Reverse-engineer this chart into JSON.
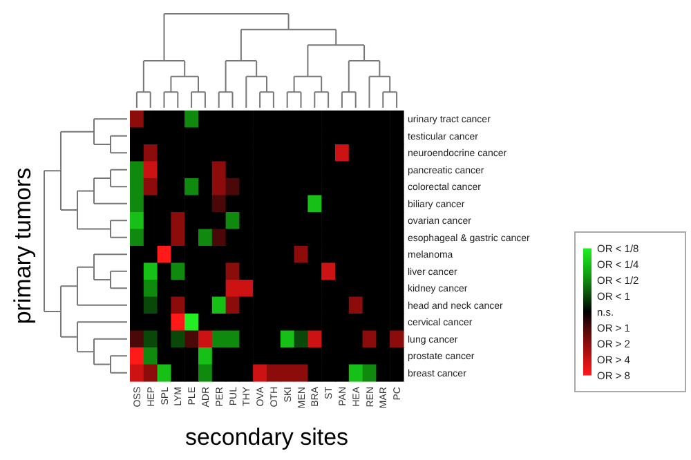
{
  "chart_data": {
    "type": "heatmap",
    "xlabel": "secondary sites",
    "ylabel": "primary tumors",
    "categories": [
      "OSS",
      "HEP",
      "SPL",
      "LYM",
      "PLE",
      "ADR",
      "PER",
      "PUL",
      "THY",
      "OVA",
      "OTH",
      "SKI",
      "MEN",
      "BRA",
      "ST",
      "PAN",
      "HEA",
      "REN",
      "MAR",
      "PC"
    ],
    "y_categories": [
      "urinary tract cancer",
      "testicular cancer",
      "neuroendocrine cancer",
      "pancreatic cancer",
      "colorectal cancer",
      "biliary cancer",
      "ovarian cancer",
      "esophageal & gastric cancer",
      "melanoma",
      "liver cancer",
      "kidney cancer",
      "head and neck cancer",
      "cervical cancer",
      "lung cancer",
      "prostate cancer",
      "breast cancer"
    ],
    "clim": [
      -4,
      4
    ],
    "cticks": [
      {
        "value": -4,
        "label": "OR < 1/8"
      },
      {
        "value": -3,
        "label": "OR < 1/4"
      },
      {
        "value": -2,
        "label": "OR < 1/2"
      },
      {
        "value": -1,
        "label": "OR < 1"
      },
      {
        "value": 0,
        "label": "n.s."
      },
      {
        "value": 1,
        "label": "OR > 1"
      },
      {
        "value": 2,
        "label": "OR > 2"
      },
      {
        "value": 3,
        "label": "OR > 4"
      },
      {
        "value": 4,
        "label": "OR > 8"
      }
    ],
    "colors": [
      "#22ee22",
      "#16c016",
      "#0f8a0f",
      "#0a480a",
      "#000000",
      "#4a0808",
      "#8c0c0c",
      "#cc1212",
      "#ff1a1a"
    ],
    "cells": [
      [
        2,
        0,
        0,
        0,
        -2,
        0,
        0,
        0,
        0,
        0,
        0,
        0,
        0,
        0,
        0,
        0,
        0,
        0,
        0,
        0
      ],
      [
        0,
        0,
        0,
        0,
        0,
        0,
        0,
        0,
        0,
        0,
        0,
        0,
        0,
        0,
        0,
        0,
        0,
        0,
        0,
        0
      ],
      [
        0,
        2,
        0,
        0,
        0,
        0,
        0,
        0,
        0,
        0,
        0,
        0,
        0,
        0,
        0,
        3,
        0,
        0,
        0,
        0
      ],
      [
        -2,
        3,
        0,
        0,
        0,
        0,
        2,
        0,
        0,
        0,
        0,
        0,
        0,
        0,
        0,
        0,
        0,
        0,
        0,
        0
      ],
      [
        -2,
        2,
        0,
        0,
        -2,
        0,
        2,
        1,
        0,
        0,
        0,
        0,
        0,
        0,
        0,
        0,
        0,
        0,
        0,
        0
      ],
      [
        -2,
        0,
        0,
        0,
        0,
        0,
        1,
        0,
        0,
        0,
        0,
        0,
        0,
        -3,
        0,
        0,
        0,
        0,
        0,
        0
      ],
      [
        -3,
        0,
        0,
        2,
        0,
        0,
        0,
        -2,
        0,
        0,
        0,
        0,
        0,
        0,
        0,
        0,
        0,
        0,
        0,
        0
      ],
      [
        -2,
        0,
        0,
        2,
        0,
        -2,
        1,
        0,
        0,
        0,
        0,
        0,
        0,
        0,
        0,
        0,
        0,
        0,
        0,
        0
      ],
      [
        0,
        0,
        4,
        0,
        0,
        0,
        0,
        0,
        0,
        0,
        0,
        0,
        2,
        0,
        0,
        0,
        0,
        0,
        0,
        0
      ],
      [
        0,
        -3,
        0,
        -2,
        0,
        0,
        0,
        2,
        0,
        0,
        0,
        0,
        0,
        0,
        3,
        0,
        0,
        0,
        0,
        0
      ],
      [
        0,
        -2,
        0,
        0,
        0,
        0,
        0,
        3,
        3,
        0,
        0,
        0,
        0,
        0,
        0,
        0,
        0,
        0,
        0,
        0
      ],
      [
        0,
        -1,
        0,
        2,
        0,
        0,
        -3,
        2,
        0,
        0,
        0,
        0,
        0,
        0,
        0,
        0,
        2,
        0,
        0,
        0
      ],
      [
        0,
        0,
        0,
        4,
        -4,
        0,
        0,
        0,
        0,
        0,
        0,
        0,
        0,
        0,
        0,
        0,
        0,
        0,
        0,
        0
      ],
      [
        1,
        -1,
        0,
        -1,
        1,
        3,
        -2,
        -2,
        0,
        0,
        0,
        -3,
        -1,
        3,
        0,
        0,
        0,
        2,
        0,
        2
      ],
      [
        4,
        -2,
        0,
        0,
        0,
        -3,
        0,
        0,
        0,
        0,
        0,
        0,
        0,
        0,
        0,
        0,
        0,
        0,
        0,
        0
      ],
      [
        3,
        2,
        -3,
        0,
        0,
        -2,
        0,
        0,
        0,
        3,
        2,
        2,
        2,
        0,
        0,
        0,
        -3,
        -2,
        0,
        0
      ]
    ]
  }
}
